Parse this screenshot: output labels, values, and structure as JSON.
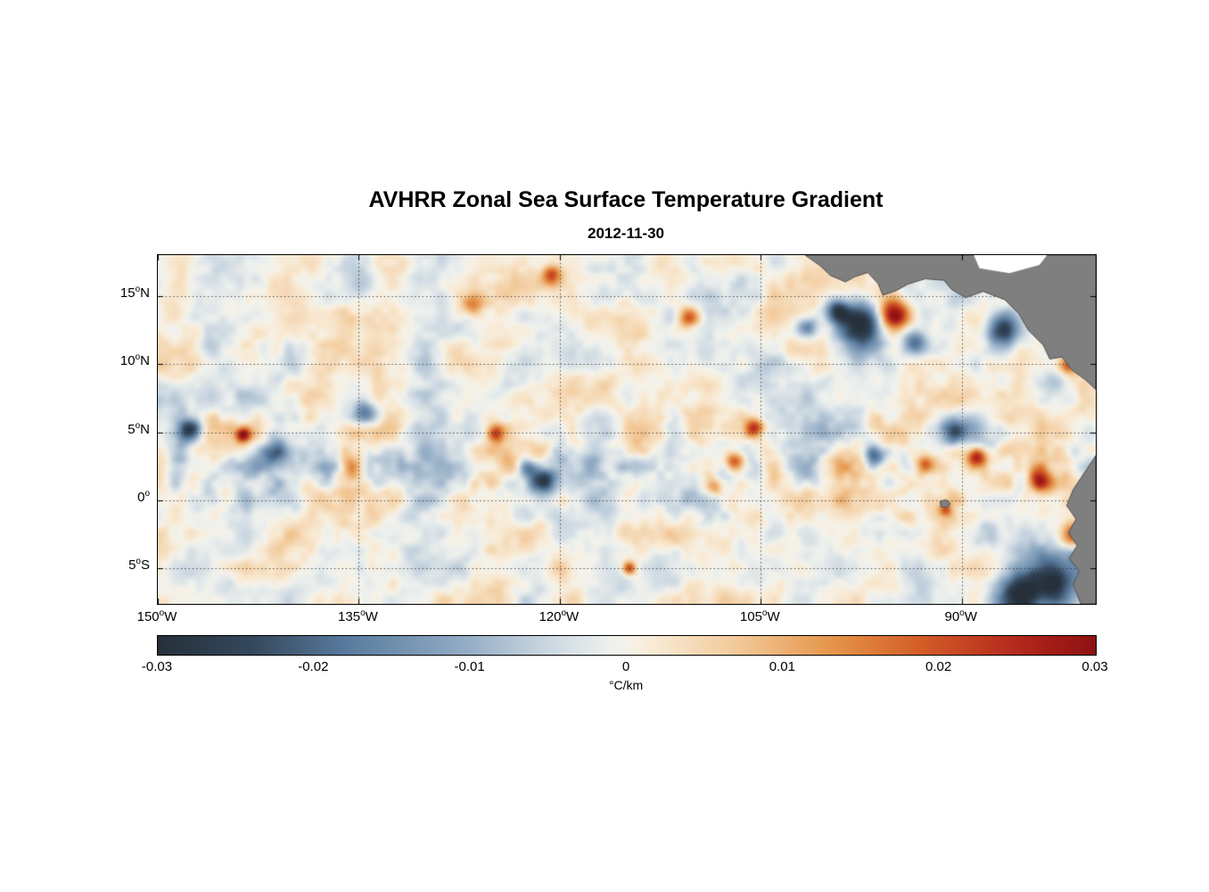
{
  "figure": {
    "title": "AVHRR Zonal Sea Surface Temperature Gradient",
    "subtitle": "2012-11-30",
    "colorbar_label": "°C/km"
  },
  "chart_data": {
    "type": "heatmap",
    "title": "AVHRR Zonal Sea Surface Temperature Gradient",
    "subtitle": "2012-11-30",
    "x_axis": {
      "unit": "longitude",
      "range": [
        -150,
        -80
      ],
      "ticks": [
        {
          "value": -150,
          "label": "150°W",
          "num": "150",
          "suffix": "W"
        },
        {
          "value": -135,
          "label": "135°W",
          "num": "135",
          "suffix": "W"
        },
        {
          "value": -120,
          "label": "120°W",
          "num": "120",
          "suffix": "W"
        },
        {
          "value": -105,
          "label": "105°W",
          "num": "105",
          "suffix": "W"
        },
        {
          "value": -90,
          "label": "90°W",
          "num": "90",
          "suffix": "W"
        }
      ]
    },
    "y_axis": {
      "unit": "latitude",
      "range": [
        -7.6,
        18.0
      ],
      "ticks": [
        {
          "value": 15,
          "label": "15°N",
          "num": "15",
          "suffix": "N"
        },
        {
          "value": 10,
          "label": "10°N",
          "num": "10",
          "suffix": "N"
        },
        {
          "value": 5,
          "label": "5°N",
          "num": "5",
          "suffix": "N"
        },
        {
          "value": 0,
          "label": "0°",
          "num": "0",
          "suffix": ""
        },
        {
          "value": -5,
          "label": "5°S",
          "num": "5",
          "suffix": "S"
        }
      ]
    },
    "colorbar": {
      "range": [
        -0.03,
        0.03
      ],
      "label": "°C/km",
      "ticks": [
        {
          "value": -0.03,
          "label": "-0.03"
        },
        {
          "value": -0.02,
          "label": "-0.02"
        },
        {
          "value": -0.01,
          "label": "-0.01"
        },
        {
          "value": 0,
          "label": "0"
        },
        {
          "value": 0.01,
          "label": "0.01"
        },
        {
          "value": 0.02,
          "label": "0.02"
        },
        {
          "value": 0.03,
          "label": "0.03"
        }
      ],
      "stops": [
        {
          "t": 0.0,
          "c": "#25303a"
        },
        {
          "t": 0.1,
          "c": "#35485c"
        },
        {
          "t": 0.2,
          "c": "#587a9d"
        },
        {
          "t": 0.32,
          "c": "#8fa9c3"
        },
        {
          "t": 0.42,
          "c": "#cdd9e2"
        },
        {
          "t": 0.48,
          "c": "#edf0ed"
        },
        {
          "t": 0.5,
          "c": "#f5f2e9"
        },
        {
          "t": 0.53,
          "c": "#f8ead4"
        },
        {
          "t": 0.62,
          "c": "#f2c897"
        },
        {
          "t": 0.72,
          "c": "#e5954a"
        },
        {
          "t": 0.81,
          "c": "#d45f27"
        },
        {
          "t": 0.89,
          "c": "#bd3520"
        },
        {
          "t": 0.95,
          "c": "#a51d18"
        },
        {
          "t": 1.0,
          "c": "#8c1212"
        }
      ]
    },
    "grid": {
      "on": true,
      "style": "dotted"
    },
    "land_color": "#7f7f7f",
    "coast_color": "#505050",
    "field": {
      "seed": 7,
      "background_amp": 0.01,
      "noise_scale_deg": 2.6,
      "equator_boost": 0.6,
      "features": [
        {
          "lon": -95.0,
          "lat": 13.6,
          "amp": 0.034,
          "r": 1.15
        },
        {
          "lon": -97.7,
          "lat": 12.9,
          "amp": -0.03,
          "r": 1.6
        },
        {
          "lon": -99.3,
          "lat": 14.0,
          "amp": -0.022,
          "r": 0.8
        },
        {
          "lon": -101.5,
          "lat": 12.7,
          "amp": -0.018,
          "r": 0.8
        },
        {
          "lon": -81.0,
          "lat": 12.2,
          "amp": 0.03,
          "r": 0.9
        },
        {
          "lon": -82.0,
          "lat": 10.0,
          "amp": 0.02,
          "r": 0.7
        },
        {
          "lon": -81.5,
          "lat": -2.6,
          "amp": 0.032,
          "r": 1.0
        },
        {
          "lon": -83.5,
          "lat": -6.2,
          "amp": -0.028,
          "r": 2.2
        },
        {
          "lon": -80.6,
          "lat": -4.0,
          "amp": -0.022,
          "r": 1.2
        },
        {
          "lon": -86.0,
          "lat": -7.0,
          "amp": -0.02,
          "r": 1.5
        },
        {
          "lon": -143.6,
          "lat": 4.8,
          "amp": 0.03,
          "r": 0.55
        },
        {
          "lon": -147.6,
          "lat": 5.2,
          "amp": -0.022,
          "r": 0.8
        },
        {
          "lon": -141.3,
          "lat": 3.4,
          "amp": -0.016,
          "r": 1.0
        },
        {
          "lon": -121.3,
          "lat": 1.5,
          "amp": -0.028,
          "r": 1.0
        },
        {
          "lon": -122.4,
          "lat": 2.4,
          "amp": -0.018,
          "r": 0.8
        },
        {
          "lon": -107.0,
          "lat": 2.8,
          "amp": 0.026,
          "r": 0.8
        },
        {
          "lon": -105.5,
          "lat": 5.3,
          "amp": 0.024,
          "r": 0.7
        },
        {
          "lon": -108.6,
          "lat": 1.0,
          "amp": 0.018,
          "r": 0.7
        },
        {
          "lon": -92.8,
          "lat": 2.6,
          "amp": 0.024,
          "r": 0.7
        },
        {
          "lon": -88.9,
          "lat": 3.2,
          "amp": 0.026,
          "r": 0.7
        },
        {
          "lon": -84.2,
          "lat": 1.4,
          "amp": 0.028,
          "r": 0.8
        },
        {
          "lon": -90.5,
          "lat": 5.0,
          "amp": -0.022,
          "r": 0.9
        },
        {
          "lon": -96.5,
          "lat": 3.3,
          "amp": -0.02,
          "r": 0.8
        },
        {
          "lon": -110.4,
          "lat": 13.4,
          "amp": 0.02,
          "r": 0.8
        },
        {
          "lon": -120.6,
          "lat": 16.5,
          "amp": 0.02,
          "r": 0.7
        },
        {
          "lon": -126.5,
          "lat": 14.4,
          "amp": 0.016,
          "r": 0.8
        },
        {
          "lon": -134.6,
          "lat": 6.5,
          "amp": -0.018,
          "r": 0.9
        },
        {
          "lon": -135.6,
          "lat": 2.5,
          "amp": 0.02,
          "r": 0.9
        },
        {
          "lon": -124.8,
          "lat": 4.9,
          "amp": 0.022,
          "r": 0.6
        },
        {
          "lon": -114.8,
          "lat": -5.0,
          "amp": 0.024,
          "r": 0.5
        },
        {
          "lon": -91.2,
          "lat": -0.7,
          "amp": 0.018,
          "r": 0.45
        },
        {
          "lon": -87.0,
          "lat": 12.5,
          "amp": -0.026,
          "r": 1.1
        },
        {
          "lon": -93.5,
          "lat": 11.5,
          "amp": -0.02,
          "r": 0.9
        }
      ]
    },
    "land": {
      "central_america": [
        [
          0.69,
          0
        ],
        [
          0.706,
          0.03
        ],
        [
          0.717,
          0.058
        ],
        [
          0.733,
          0.077
        ],
        [
          0.743,
          0.062
        ],
        [
          0.757,
          0.05
        ],
        [
          0.768,
          0.082
        ],
        [
          0.773,
          0.115
        ],
        [
          0.787,
          0.102
        ],
        [
          0.8,
          0.083
        ],
        [
          0.818,
          0.068
        ],
        [
          0.838,
          0.072
        ],
        [
          0.846,
          0.098
        ],
        [
          0.861,
          0.122
        ],
        [
          0.88,
          0.104
        ],
        [
          0.903,
          0.128
        ],
        [
          0.918,
          0.168
        ],
        [
          0.928,
          0.215
        ],
        [
          0.944,
          0.258
        ],
        [
          0.951,
          0.298
        ],
        [
          0.964,
          0.292
        ],
        [
          0.974,
          0.328
        ],
        [
          0.989,
          0.358
        ],
        [
          1.0,
          0.385
        ],
        [
          1.0,
          0
        ]
      ],
      "caribbean_notch": [
        [
          0.87,
          0
        ],
        [
          0.948,
          0
        ],
        [
          0.94,
          0.028
        ],
        [
          0.908,
          0.052
        ],
        [
          0.876,
          0.038
        ]
      ],
      "south_america": [
        [
          1.0,
          0.575
        ],
        [
          0.99,
          0.615
        ],
        [
          0.976,
          0.672
        ],
        [
          0.969,
          0.718
        ],
        [
          0.979,
          0.757
        ],
        [
          0.971,
          0.795
        ],
        [
          0.98,
          0.833
        ],
        [
          0.972,
          0.87
        ],
        [
          0.982,
          0.905
        ],
        [
          0.976,
          0.945
        ],
        [
          0.984,
          1.0
        ],
        [
          1.0,
          1.0
        ]
      ],
      "galapagos": [
        [
          0.834,
          0.705
        ],
        [
          0.841,
          0.702
        ],
        [
          0.845,
          0.712
        ],
        [
          0.842,
          0.724
        ],
        [
          0.835,
          0.722
        ]
      ]
    }
  }
}
